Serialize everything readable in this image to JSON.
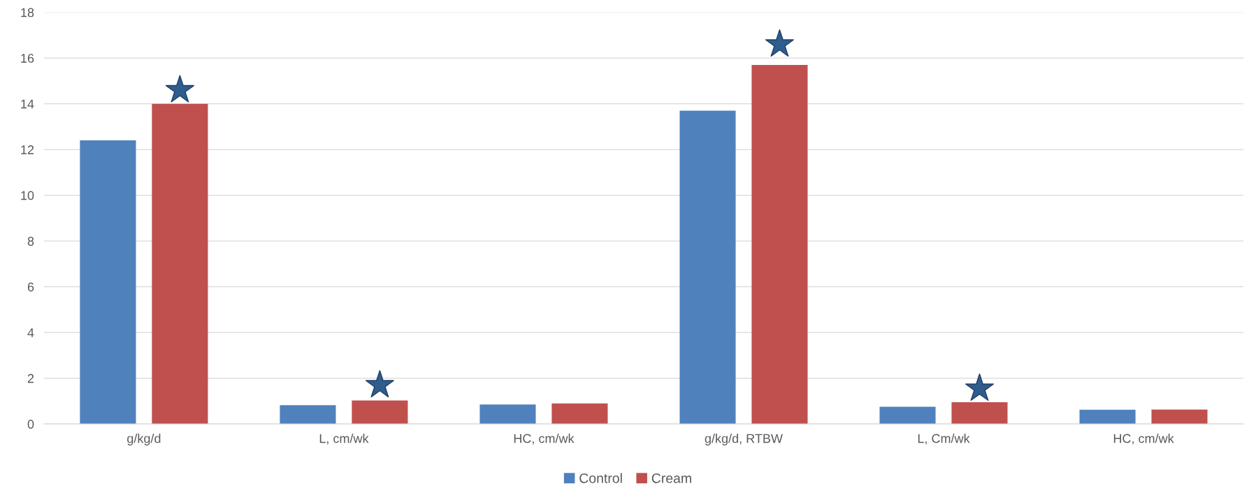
{
  "chart_data": {
    "type": "bar",
    "categories": [
      "g/kg/d",
      "L, cm/wk",
      "HC, cm/wk",
      "g/kg/d, RTBW",
      "L, Cm/wk",
      "HC, cm/wk"
    ],
    "series": [
      {
        "name": "Control",
        "color": "#4f81bd",
        "values": [
          12.4,
          0.82,
          0.85,
          13.7,
          0.75,
          0.62
        ]
      },
      {
        "name": "Cream",
        "color": "#c0504d",
        "values": [
          14.0,
          1.03,
          0.9,
          15.7,
          0.95,
          0.63
        ]
      },
      {
        "type": "scatter",
        "color": "#2e5d8e",
        "marker": "star",
        "values": [
          14.6,
          1.7,
          null,
          16.6,
          1.55,
          null
        ]
      }
    ],
    "ylim": [
      0,
      18
    ],
    "yticks": [
      0,
      2,
      4,
      6,
      8,
      10,
      12,
      14,
      16,
      18
    ],
    "grid": "y",
    "legend": "bottom"
  }
}
